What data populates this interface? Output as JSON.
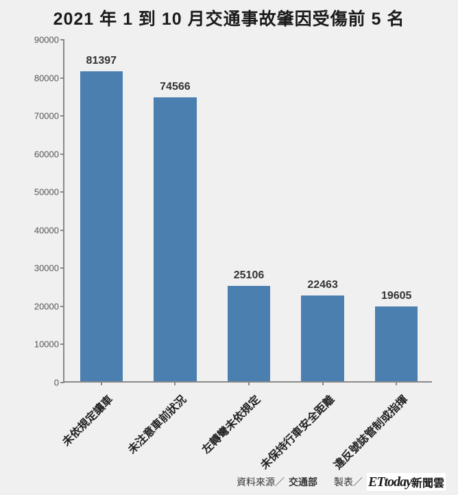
{
  "title": "2021 年 1 到 10 月交通事故肇因受傷前 5 名",
  "title_fontsize": 25,
  "chart": {
    "type": "bar",
    "categories": [
      "未依規定讓車",
      "未注意車前狀況",
      "左轉彎未依規定",
      "未保持行車安全距離",
      "違反號誌管制或指揮"
    ],
    "values": [
      81397,
      74566,
      25106,
      22463,
      19605
    ],
    "bar_color": "#4a7fb0",
    "background_color": "#f0f0f0",
    "axis_color": "#888888",
    "ylim": [
      0,
      90000
    ],
    "ytick_step": 10000,
    "bar_width_ratio": 0.58,
    "value_label_fontsize": 16,
    "value_label_weight": "700",
    "category_label_fontsize": 16,
    "category_label_weight": "700",
    "category_label_rotation": -45,
    "tick_label_fontsize": 13,
    "tick_label_color": "#555555"
  },
  "footer": {
    "source_label": "資料來源／",
    "source_value": "交通部",
    "maker_label": "製表／",
    "brand_latin": "ETtoday",
    "brand_cn": "新聞雲"
  }
}
